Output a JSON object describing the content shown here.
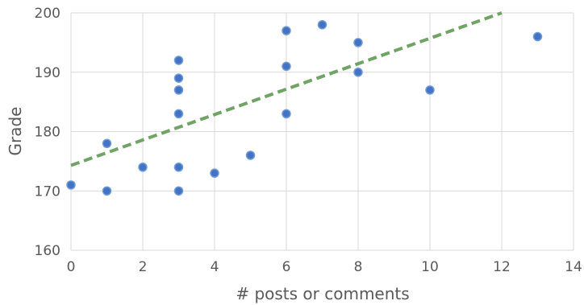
{
  "chart_data": {
    "type": "scatter",
    "title": "",
    "xlabel": "# posts or comments",
    "ylabel": "Grade",
    "xlim": [
      0,
      14
    ],
    "ylim": [
      160,
      200
    ],
    "x_ticks": [
      "0",
      "2",
      "4",
      "6",
      "8",
      "10",
      "12",
      "14"
    ],
    "y_ticks": [
      "160",
      "170",
      "180",
      "190",
      "200"
    ],
    "grid": true,
    "legend": "none",
    "point_color": "#4472c4",
    "trendline_color": "#70a365",
    "series": [
      {
        "points": [
          {
            "x": 0,
            "y": 171
          },
          {
            "x": 1,
            "y": 178
          },
          {
            "x": 1,
            "y": 170
          },
          {
            "x": 2,
            "y": 174
          },
          {
            "x": 3,
            "y": 192
          },
          {
            "x": 3,
            "y": 189
          },
          {
            "x": 3,
            "y": 187
          },
          {
            "x": 3,
            "y": 183
          },
          {
            "x": 3,
            "y": 174
          },
          {
            "x": 3,
            "y": 170
          },
          {
            "x": 4,
            "y": 173
          },
          {
            "x": 5,
            "y": 176
          },
          {
            "x": 6,
            "y": 197
          },
          {
            "x": 6,
            "y": 191
          },
          {
            "x": 6,
            "y": 183
          },
          {
            "x": 7,
            "y": 198
          },
          {
            "x": 8,
            "y": 195
          },
          {
            "x": 8,
            "y": 190
          },
          {
            "x": 10,
            "y": 187
          },
          {
            "x": 13,
            "y": 196
          }
        ]
      }
    ],
    "trendline": {
      "type": "linear",
      "style": "dashed",
      "from": {
        "x": 0,
        "y": 174.3
      },
      "to": {
        "x": 12,
        "y": 200
      }
    }
  }
}
